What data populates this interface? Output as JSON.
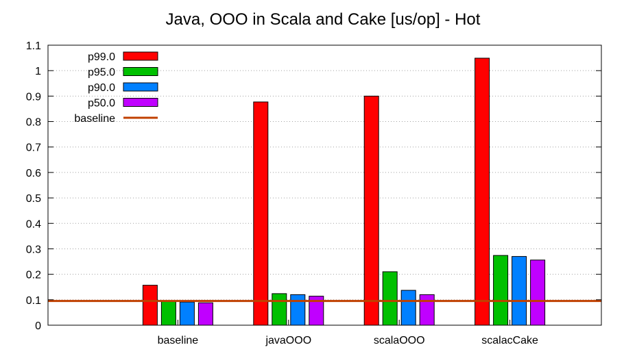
{
  "chart_data": {
    "type": "bar",
    "title": "Java, OOO in Scala and Cake [us/op] - Hot",
    "xlabel": "",
    "ylabel": "",
    "categories": [
      "baseline",
      "javaOOO",
      "scalaOOO",
      "scalacCake"
    ],
    "series": [
      {
        "name": "p99.0",
        "color": "#ff0000",
        "values": [
          0.157,
          0.877,
          0.9,
          1.049
        ]
      },
      {
        "name": "p95.0",
        "color": "#00c000",
        "values": [
          0.093,
          0.124,
          0.21,
          0.274
        ]
      },
      {
        "name": "p90.0",
        "color": "#0080ff",
        "values": [
          0.091,
          0.12,
          0.137,
          0.27
        ]
      },
      {
        "name": "p50.0",
        "color": "#c000ff",
        "values": [
          0.088,
          0.114,
          0.12,
          0.256
        ]
      }
    ],
    "baseline": {
      "name": "baseline",
      "value": 0.095,
      "color": "#c04000"
    },
    "ylim": [
      0,
      1.1
    ],
    "yticks": [
      "0",
      "0.1",
      "0.2",
      "0.3",
      "0.4",
      "0.5",
      "0.6",
      "0.7",
      "0.8",
      "0.9",
      "1",
      "1.1"
    ],
    "grid": "horizontal dotted",
    "legend_position": "top-left"
  }
}
